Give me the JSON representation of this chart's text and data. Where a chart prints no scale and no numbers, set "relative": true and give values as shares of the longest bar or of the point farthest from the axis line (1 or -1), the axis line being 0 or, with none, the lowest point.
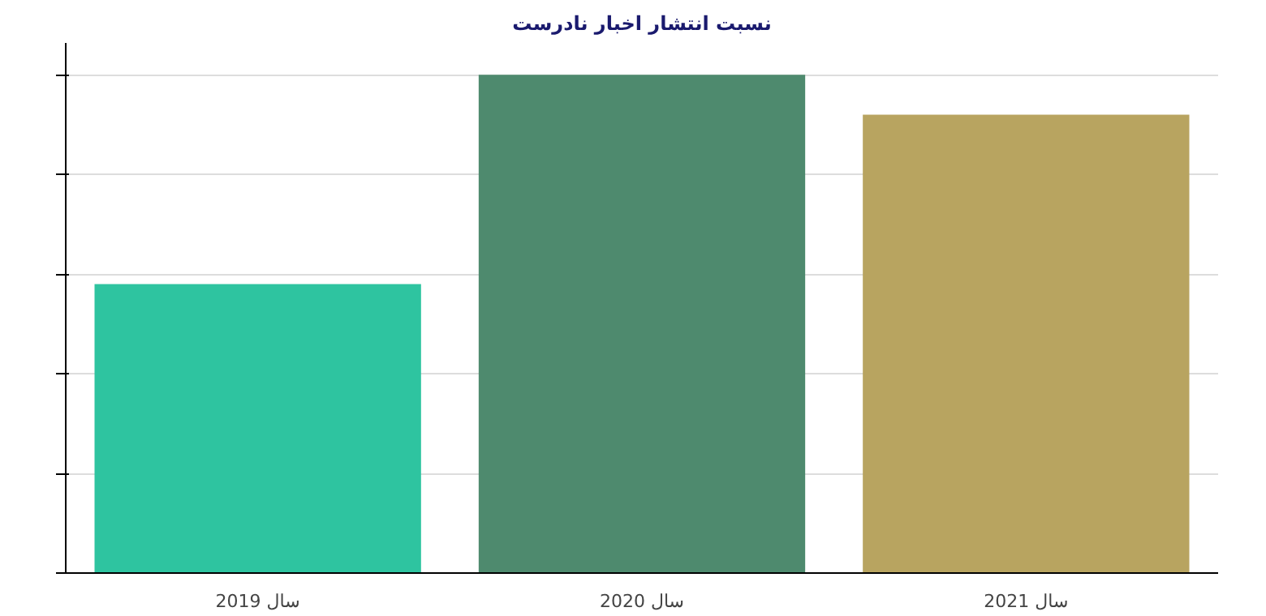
{
  "chart_data": {
    "type": "bar",
    "title": "نسبت انتشار اخبار نادرست",
    "categories": [
      "سال 2019",
      "سال 2020",
      "سال 2021"
    ],
    "values": [
      0.58,
      1,
      0.92
    ],
    "colors": [
      "#2ec4a0",
      "#4e8a6e",
      "#b8a460"
    ],
    "relative": true,
    "grid": "y"
  }
}
